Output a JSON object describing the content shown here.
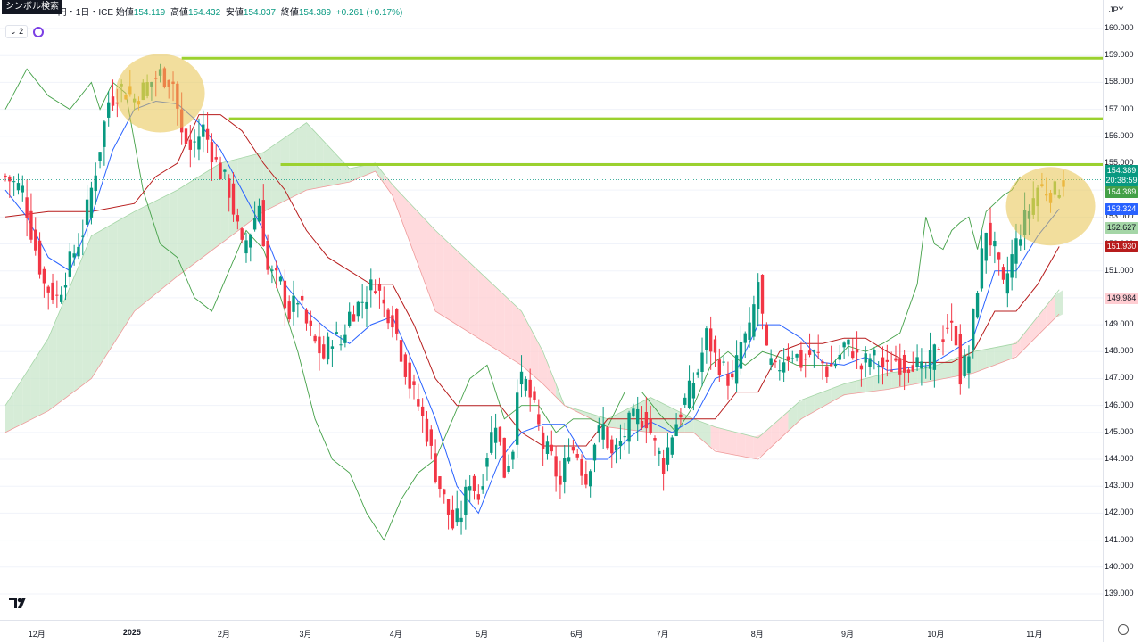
{
  "symbol_search_label": "シンボル検索",
  "header": {
    "title": "円・1日・ICE",
    "open_label": "始値",
    "open": "154.119",
    "high_label": "高値",
    "high": "154.432",
    "low_label": "安値",
    "low": "154.037",
    "close_label": "終値",
    "close": "154.389",
    "change": "+0.261 (+0.17%)",
    "indicator_count": "2"
  },
  "currency": "JPY",
  "price_badges": {
    "last": "154.389",
    "countdown": "20:38:59",
    "last_green": "154.389",
    "blue": "153.324",
    "light_green": "152.627",
    "red": "151.930",
    "pink": "149.984"
  },
  "colors": {
    "up": "#089981",
    "down": "#f23645",
    "tenkan": "#2962ff",
    "kijun": "#b71c1c",
    "chikou": "#43a047",
    "cloud_bull": "#c8e6c9",
    "cloud_bear": "#ffcdd2",
    "resistance": "#9bd12f",
    "highlight": "#e8c34c",
    "highlight_candle": "#f0a830"
  },
  "chart_data": {
    "type": "candlestick",
    "y_axis_ticks": [
      "160.000",
      "159.000",
      "158.000",
      "157.000",
      "156.000",
      "155.000",
      "154.000",
      "153.000",
      "152.000",
      "151.000",
      "150.000",
      "149.000",
      "148.000",
      "147.000",
      "146.000",
      "145.000",
      "144.000",
      "143.000",
      "142.000",
      "141.000",
      "140.000",
      "139.000"
    ],
    "ylim": [
      138.5,
      161.0
    ],
    "x_axis_labels": [
      {
        "label": "12月",
        "index": 7
      },
      {
        "label": "2025",
        "index": 29
      },
      {
        "label": "2月",
        "index": 51
      },
      {
        "label": "3月",
        "index": 70
      },
      {
        "label": "4月",
        "index": 91
      },
      {
        "label": "5月",
        "index": 111
      },
      {
        "label": "6月",
        "index": 133
      },
      {
        "label": "7月",
        "index": 153
      },
      {
        "label": "8月",
        "index": 175
      },
      {
        "label": "9月",
        "index": 196
      },
      {
        "label": "10月",
        "index": 216
      },
      {
        "label": "11月",
        "index": 239
      }
    ],
    "candle_count": 247,
    "price_path": [
      [
        0,
        154.5
      ],
      [
        4,
        154.0
      ],
      [
        6,
        152.5
      ],
      [
        9,
        150.5
      ],
      [
        12,
        150.0
      ],
      [
        15,
        151.3
      ],
      [
        18,
        152.5
      ],
      [
        21,
        154.8
      ],
      [
        24,
        157.3
      ],
      [
        27,
        157.8
      ],
      [
        30,
        157.4
      ],
      [
        33,
        157.9
      ],
      [
        36,
        158.3
      ],
      [
        39,
        158.0
      ],
      [
        41,
        156.0
      ],
      [
        43,
        155.5
      ],
      [
        46,
        156.3
      ],
      [
        49,
        155.0
      ],
      [
        52,
        154.0
      ],
      [
        55,
        151.8
      ],
      [
        57,
        152.5
      ],
      [
        59,
        153.5
      ],
      [
        61,
        151.0
      ],
      [
        64,
        150.5
      ],
      [
        66,
        149.4
      ],
      [
        68,
        150.0
      ],
      [
        70,
        149.0
      ],
      [
        72,
        148.3
      ],
      [
        74,
        147.8
      ],
      [
        76,
        148.6
      ],
      [
        78,
        148.3
      ],
      [
        80,
        149.4
      ],
      [
        83,
        149.9
      ],
      [
        86,
        150.6
      ],
      [
        88,
        149.7
      ],
      [
        90,
        149.3
      ],
      [
        92,
        148.0
      ],
      [
        94,
        146.8
      ],
      [
        96,
        146.0
      ],
      [
        98,
        145.0
      ],
      [
        100,
        143.5
      ],
      [
        102,
        142.5
      ],
      [
        104,
        141.5
      ],
      [
        106,
        142.0
      ],
      [
        108,
        143.3
      ],
      [
        110,
        142.6
      ],
      [
        112,
        144.3
      ],
      [
        114,
        145.5
      ],
      [
        116,
        143.5
      ],
      [
        118,
        144.5
      ],
      [
        119,
        146.9
      ],
      [
        121,
        146.8
      ],
      [
        123,
        145.8
      ],
      [
        125,
        144.5
      ],
      [
        127,
        144.0
      ],
      [
        129,
        143.0
      ],
      [
        131,
        144.5
      ],
      [
        133,
        144.2
      ],
      [
        135,
        143.2
      ],
      [
        137,
        144.7
      ],
      [
        139,
        145.2
      ],
      [
        141,
        144.1
      ],
      [
        143,
        144.6
      ],
      [
        145,
        145.3
      ],
      [
        147,
        145.6
      ],
      [
        149,
        145.5
      ],
      [
        151,
        144.5
      ],
      [
        153,
        143.8
      ],
      [
        155,
        145.0
      ],
      [
        157,
        145.8
      ],
      [
        159,
        146.5
      ],
      [
        161,
        147.3
      ],
      [
        163,
        148.6
      ],
      [
        165,
        147.8
      ],
      [
        167,
        147.3
      ],
      [
        169,
        146.8
      ],
      [
        171,
        148.3
      ],
      [
        173,
        148.7
      ],
      [
        175,
        150.6
      ],
      [
        177,
        147.8
      ],
      [
        179,
        147.2
      ],
      [
        181,
        147.8
      ],
      [
        183,
        148.0
      ],
      [
        185,
        147.6
      ],
      [
        187,
        147.9
      ],
      [
        189,
        147.8
      ],
      [
        191,
        147.3
      ],
      [
        193,
        147.6
      ],
      [
        195,
        148.2
      ],
      [
        197,
        148.1
      ],
      [
        199,
        147.4
      ],
      [
        201,
        147.8
      ],
      [
        203,
        147.6
      ],
      [
        205,
        147.3
      ],
      [
        207,
        147.7
      ],
      [
        209,
        147.5
      ],
      [
        211,
        147.7
      ],
      [
        213,
        147.2
      ],
      [
        215,
        147.6
      ],
      [
        217,
        148.3
      ],
      [
        219,
        149.0
      ],
      [
        221,
        148.6
      ],
      [
        222,
        147.1
      ],
      [
        224,
        147.9
      ],
      [
        226,
        150.5
      ],
      [
        228,
        152.6
      ],
      [
        230,
        151.7
      ],
      [
        232,
        150.3
      ],
      [
        234,
        151.5
      ],
      [
        236,
        152.5
      ],
      [
        238,
        153.3
      ],
      [
        240,
        154.1
      ],
      [
        242,
        154.0
      ],
      [
        244,
        153.9
      ],
      [
        246,
        154.4
      ]
    ],
    "highlight_candles": [
      [
        27,
        33
      ],
      [
        239,
        246
      ]
    ],
    "cloud_top": [
      [
        0,
        146.0
      ],
      [
        10,
        148.5
      ],
      [
        20,
        152.3
      ],
      [
        30,
        153.2
      ],
      [
        40,
        154.0
      ],
      [
        50,
        155.0
      ],
      [
        60,
        155.4
      ],
      [
        70,
        156.5
      ],
      [
        80,
        154.8
      ],
      [
        86,
        155.0
      ],
      [
        90,
        154.2
      ],
      [
        100,
        152.5
      ],
      [
        110,
        151.0
      ],
      [
        120,
        149.5
      ],
      [
        125,
        148.0
      ],
      [
        130,
        146.0
      ],
      [
        140,
        145.5
      ],
      [
        150,
        146.3
      ],
      [
        160,
        145.5
      ],
      [
        165,
        145.2
      ],
      [
        175,
        144.8
      ],
      [
        185,
        146.2
      ],
      [
        195,
        146.8
      ],
      [
        205,
        147.2
      ],
      [
        215,
        147.4
      ],
      [
        225,
        148.0
      ],
      [
        235,
        148.3
      ],
      [
        245,
        150.3
      ]
    ],
    "cloud_bottom": [
      [
        0,
        145.0
      ],
      [
        10,
        145.8
      ],
      [
        20,
        147.0
      ],
      [
        30,
        149.5
      ],
      [
        40,
        150.8
      ],
      [
        50,
        152.0
      ],
      [
        60,
        153.2
      ],
      [
        70,
        154.0
      ],
      [
        80,
        154.3
      ],
      [
        86,
        154.7
      ],
      [
        90,
        153.8
      ],
      [
        100,
        149.5
      ],
      [
        110,
        148.5
      ],
      [
        120,
        147.5
      ],
      [
        125,
        146.8
      ],
      [
        130,
        146.0
      ],
      [
        140,
        145.2
      ],
      [
        150,
        145.0
      ],
      [
        160,
        145.0
      ],
      [
        165,
        144.3
      ],
      [
        175,
        144.0
      ],
      [
        185,
        145.5
      ],
      [
        195,
        146.4
      ],
      [
        205,
        146.6
      ],
      [
        215,
        146.9
      ],
      [
        225,
        147.2
      ],
      [
        235,
        147.8
      ],
      [
        245,
        149.4
      ]
    ],
    "tenkan": [
      [
        0,
        154.0
      ],
      [
        5,
        153.0
      ],
      [
        10,
        151.5
      ],
      [
        15,
        151.0
      ],
      [
        20,
        153.0
      ],
      [
        25,
        155.5
      ],
      [
        30,
        157.0
      ],
      [
        35,
        157.3
      ],
      [
        40,
        157.2
      ],
      [
        45,
        156.5
      ],
      [
        50,
        155.5
      ],
      [
        55,
        154.0
      ],
      [
        60,
        152.5
      ],
      [
        65,
        150.5
      ],
      [
        70,
        149.5
      ],
      [
        75,
        148.8
      ],
      [
        80,
        148.3
      ],
      [
        85,
        149.0
      ],
      [
        90,
        149.3
      ],
      [
        95,
        147.5
      ],
      [
        100,
        145.5
      ],
      [
        105,
        143.0
      ],
      [
        110,
        142.0
      ],
      [
        115,
        144.0
      ],
      [
        120,
        145.0
      ],
      [
        125,
        145.3
      ],
      [
        130,
        145.3
      ],
      [
        135,
        144.0
      ],
      [
        140,
        144.0
      ],
      [
        145,
        144.8
      ],
      [
        150,
        145.4
      ],
      [
        155,
        145.0
      ],
      [
        160,
        145.5
      ],
      [
        165,
        147.0
      ],
      [
        170,
        147.3
      ],
      [
        175,
        149.0
      ],
      [
        180,
        149.0
      ],
      [
        185,
        148.5
      ],
      [
        190,
        147.6
      ],
      [
        195,
        147.5
      ],
      [
        200,
        147.8
      ],
      [
        205,
        147.3
      ],
      [
        210,
        147.4
      ],
      [
        215,
        147.5
      ],
      [
        220,
        148.0
      ],
      [
        225,
        148.5
      ],
      [
        230,
        151.0
      ],
      [
        235,
        151.0
      ],
      [
        240,
        152.3
      ],
      [
        245,
        153.3
      ]
    ],
    "kijun": [
      [
        0,
        153.0
      ],
      [
        10,
        153.2
      ],
      [
        20,
        153.2
      ],
      [
        30,
        153.5
      ],
      [
        35,
        154.5
      ],
      [
        40,
        155.0
      ],
      [
        45,
        156.8
      ],
      [
        50,
        156.8
      ],
      [
        55,
        156.2
      ],
      [
        60,
        155.0
      ],
      [
        65,
        154.0
      ],
      [
        70,
        152.5
      ],
      [
        75,
        151.5
      ],
      [
        80,
        151.0
      ],
      [
        85,
        150.5
      ],
      [
        90,
        150.5
      ],
      [
        95,
        149.0
      ],
      [
        100,
        147.0
      ],
      [
        105,
        146.0
      ],
      [
        110,
        146.0
      ],
      [
        115,
        146.0
      ],
      [
        120,
        145.0
      ],
      [
        125,
        144.5
      ],
      [
        130,
        144.5
      ],
      [
        135,
        144.5
      ],
      [
        140,
        145.5
      ],
      [
        145,
        145.5
      ],
      [
        150,
        145.5
      ],
      [
        155,
        145.5
      ],
      [
        160,
        145.5
      ],
      [
        165,
        145.5
      ],
      [
        170,
        146.5
      ],
      [
        175,
        146.5
      ],
      [
        180,
        148.0
      ],
      [
        185,
        148.3
      ],
      [
        190,
        148.3
      ],
      [
        195,
        148.5
      ],
      [
        200,
        148.5
      ],
      [
        205,
        148.0
      ],
      [
        210,
        147.6
      ],
      [
        215,
        147.6
      ],
      [
        220,
        147.6
      ],
      [
        225,
        148.0
      ],
      [
        230,
        149.5
      ],
      [
        235,
        149.5
      ],
      [
        240,
        150.5
      ],
      [
        245,
        151.9
      ]
    ],
    "chikou": [
      [
        0,
        157.0
      ],
      [
        5,
        158.5
      ],
      [
        10,
        157.5
      ],
      [
        15,
        157.0
      ],
      [
        20,
        158.0
      ],
      [
        22,
        157.0
      ],
      [
        25,
        158.0
      ],
      [
        28,
        157.6
      ],
      [
        32,
        154.0
      ],
      [
        36,
        152.0
      ],
      [
        40,
        151.5
      ],
      [
        44,
        150.0
      ],
      [
        48,
        149.5
      ],
      [
        52,
        151.0
      ],
      [
        56,
        152.5
      ],
      [
        60,
        151.8
      ],
      [
        64,
        150.0
      ],
      [
        68,
        148.0
      ],
      [
        72,
        145.5
      ],
      [
        76,
        144.0
      ],
      [
        80,
        143.5
      ],
      [
        84,
        142.0
      ],
      [
        88,
        141.0
      ],
      [
        92,
        142.5
      ],
      [
        96,
        143.5
      ],
      [
        100,
        144.0
      ],
      [
        104,
        145.5
      ],
      [
        108,
        147.0
      ],
      [
        112,
        147.5
      ],
      [
        116,
        145.5
      ],
      [
        120,
        146.0
      ],
      [
        124,
        146.0
      ],
      [
        128,
        145.0
      ],
      [
        132,
        145.5
      ],
      [
        136,
        145.5
      ],
      [
        140,
        145.2
      ],
      [
        144,
        146.5
      ],
      [
        148,
        146.5
      ],
      [
        152,
        145.7
      ],
      [
        156,
        145.0
      ],
      [
        160,
        146.0
      ],
      [
        164,
        147.5
      ],
      [
        168,
        148.0
      ],
      [
        172,
        147.5
      ],
      [
        176,
        148.0
      ],
      [
        180,
        147.8
      ],
      [
        184,
        147.5
      ],
      [
        188,
        147.5
      ],
      [
        192,
        147.5
      ],
      [
        196,
        148.2
      ],
      [
        200,
        148.0
      ],
      [
        204,
        148.3
      ],
      [
        208,
        148.7
      ],
      [
        212,
        150.5
      ],
      [
        214,
        153.0
      ],
      [
        216,
        152.0
      ],
      [
        218,
        151.8
      ],
      [
        220,
        152.5
      ],
      [
        222,
        152.8
      ],
      [
        224,
        153.0
      ],
      [
        226,
        151.8
      ],
      [
        228,
        153.2
      ],
      [
        230,
        153.5
      ],
      [
        232,
        153.8
      ],
      [
        234,
        154.0
      ],
      [
        236,
        154.5
      ]
    ],
    "horizontal_lines": [
      {
        "price": 158.9,
        "start": 41
      },
      {
        "price": 156.65,
        "start": 52
      },
      {
        "price": 154.95,
        "start": 64
      }
    ],
    "last_price": 154.389,
    "highlight_circles": [
      {
        "center_index": 36,
        "price": 157.6
      },
      {
        "center_index": 243,
        "price": 153.4
      }
    ]
  }
}
